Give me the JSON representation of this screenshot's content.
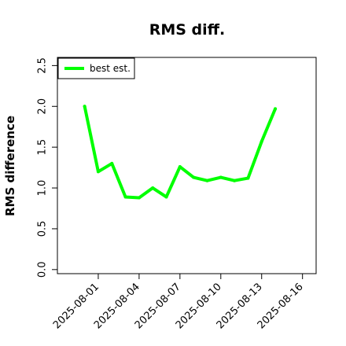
{
  "chart_data": {
    "type": "line",
    "title": "RMS diff.",
    "xlabel": "",
    "ylabel": "RMS difference",
    "x": [
      "2025-07-31",
      "2025-08-01",
      "2025-08-02",
      "2025-08-03",
      "2025-08-04",
      "2025-08-05",
      "2025-08-06",
      "2025-08-07",
      "2025-08-08",
      "2025-08-09",
      "2025-08-10",
      "2025-08-11",
      "2025-08-12",
      "2025-08-13",
      "2025-08-14"
    ],
    "xlim": [
      "2025-07-29",
      "2025-08-17"
    ],
    "x_ticks": [
      "2025-08-01",
      "2025-08-04",
      "2025-08-07",
      "2025-08-10",
      "2025-08-13",
      "2025-08-16"
    ],
    "ylim": [
      -0.05,
      2.6
    ],
    "y_ticks": [
      "0.0",
      "0.5",
      "1.0",
      "1.5",
      "2.0",
      "2.5"
    ],
    "grid": false,
    "legend_position": "top-left",
    "series": [
      {
        "name": "best est.",
        "color": "#00ff00",
        "values": [
          2.0,
          1.2,
          1.3,
          0.89,
          0.88,
          1.0,
          0.89,
          1.26,
          1.13,
          1.09,
          1.13,
          1.09,
          1.12,
          1.57,
          1.97
        ]
      }
    ]
  }
}
